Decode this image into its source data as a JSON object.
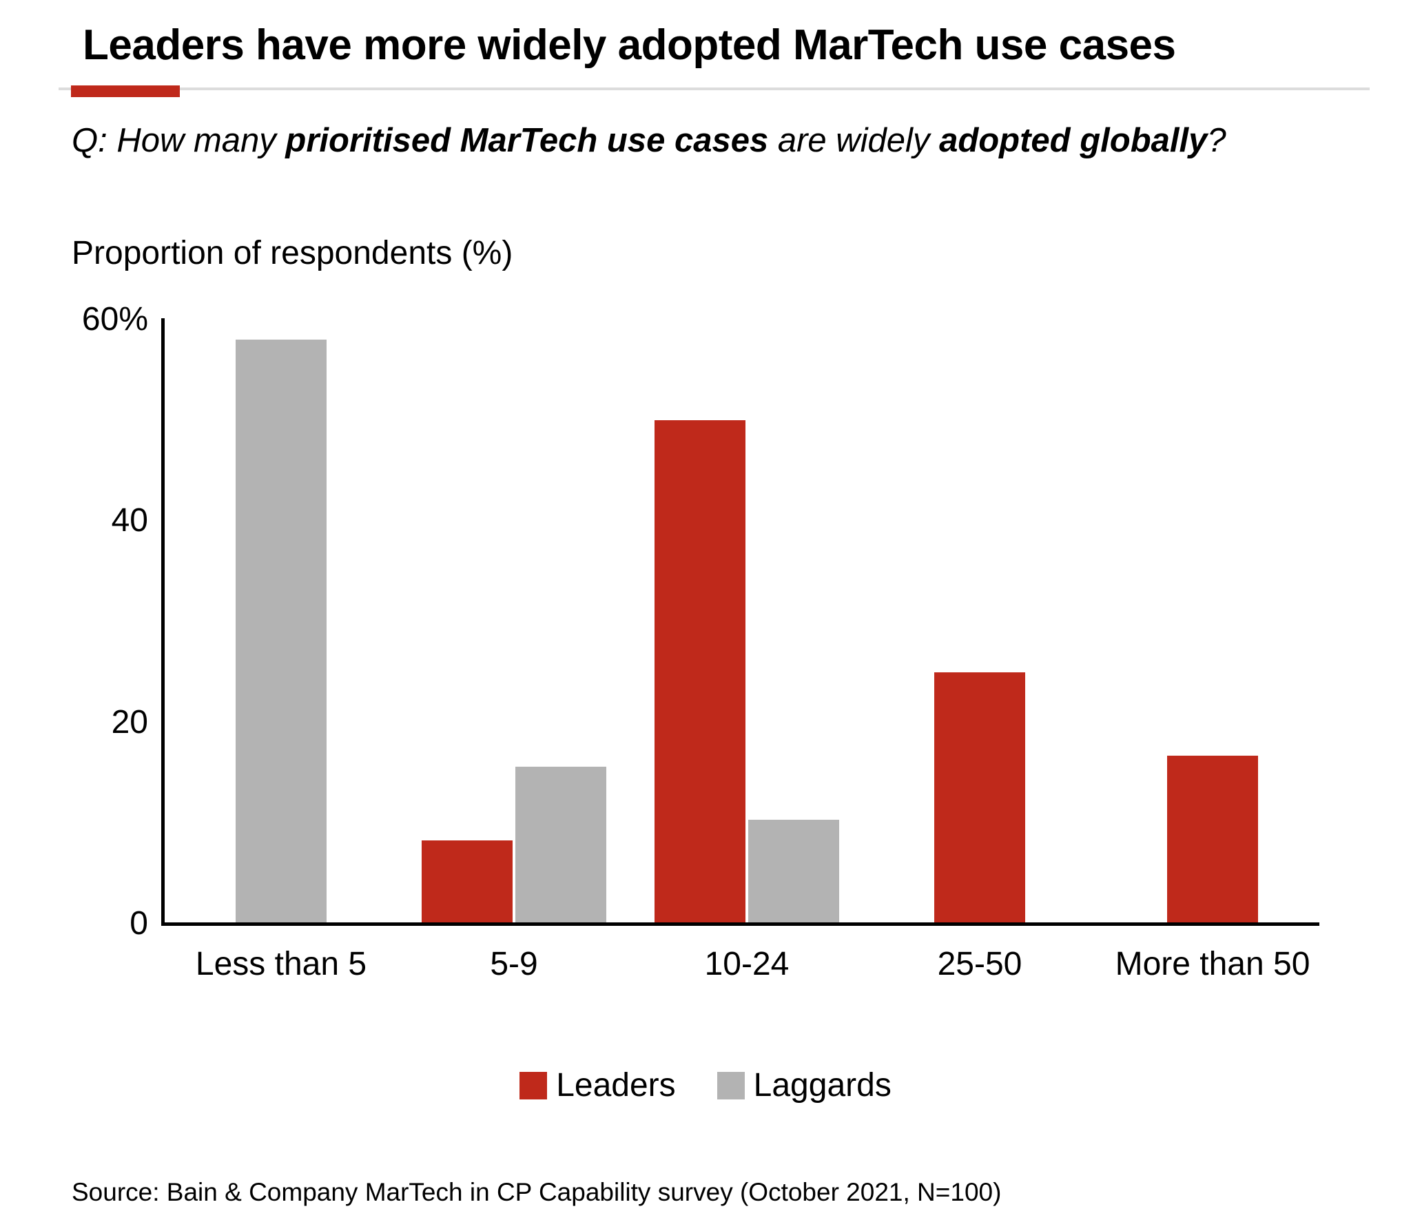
{
  "title": "Leaders have more widely adopted MarTech use cases",
  "accent_color": "#bf291b",
  "question": {
    "prefix": "Q: How many ",
    "bold1": "prioritised MarTech use cases",
    "mid": " are widely ",
    "bold2": "adopted globally",
    "suffix": "?"
  },
  "chart_data": {
    "type": "bar",
    "title": "Proportion of respondents (%)",
    "categories": [
      "Less than 5",
      "5-9",
      "10-24",
      "25-50",
      "More than 50"
    ],
    "series": [
      {
        "name": "Leaders",
        "color": "#bf291b",
        "values": [
          0,
          8.3,
          50,
          25,
          16.7
        ]
      },
      {
        "name": "Laggards",
        "color": "#b3b3b3",
        "values": [
          58,
          15.6,
          10.3,
          0,
          0
        ]
      }
    ],
    "ylabel": "Proportion of respondents (%)",
    "xlabel": "",
    "ylim": [
      0,
      60
    ],
    "yticks": [
      {
        "value": 60,
        "label": "60%"
      },
      {
        "value": 40,
        "label": "40"
      },
      {
        "value": 20,
        "label": "20"
      },
      {
        "value": 0,
        "label": "0"
      }
    ],
    "grid": false,
    "legend_position": "bottom"
  },
  "source": "Source: Bain & Company MarTech in CP Capability survey (October 2021, N=100)"
}
